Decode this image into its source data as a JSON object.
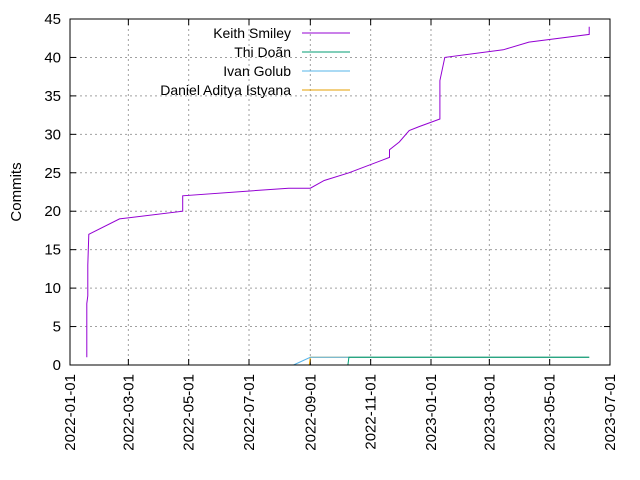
{
  "chart_data": {
    "type": "line",
    "title": "",
    "xlabel": "",
    "ylabel": "Commits",
    "x_axis_type": "date",
    "xlim": [
      "2022-01-01",
      "2023-07-01"
    ],
    "ylim": [
      0,
      45
    ],
    "grid": true,
    "legend_position": "top-left",
    "x_ticks": [
      "2022-01-01",
      "2022-03-01",
      "2022-05-01",
      "2022-07-01",
      "2022-09-01",
      "2022-11-01",
      "2023-01-01",
      "2023-03-01",
      "2023-05-01",
      "2023-07-01"
    ],
    "y_ticks": [
      "0",
      "5",
      "10",
      "15",
      "20",
      "25",
      "30",
      "35",
      "40",
      "45"
    ],
    "series": [
      {
        "name": "Keith Smiley",
        "color": "#9400d3",
        "points": [
          [
            "2022-01-18",
            1
          ],
          [
            "2022-01-18",
            8
          ],
          [
            "2022-01-19",
            9
          ],
          [
            "2022-01-19",
            13
          ],
          [
            "2022-01-20",
            17
          ],
          [
            "2022-02-20",
            19
          ],
          [
            "2022-04-25",
            20
          ],
          [
            "2022-04-25",
            22
          ],
          [
            "2022-08-10",
            23
          ],
          [
            "2022-09-01",
            23
          ],
          [
            "2022-09-15",
            24
          ],
          [
            "2022-10-10",
            25
          ],
          [
            "2022-11-20",
            27
          ],
          [
            "2022-11-20",
            28
          ],
          [
            "2022-11-30",
            29
          ],
          [
            "2022-12-10",
            30.5
          ],
          [
            "2022-12-20",
            31
          ],
          [
            "2023-01-10",
            32
          ],
          [
            "2023-01-10",
            37
          ],
          [
            "2023-01-15",
            40
          ],
          [
            "2023-03-15",
            41
          ],
          [
            "2023-04-10",
            42
          ],
          [
            "2023-06-10",
            43
          ],
          [
            "2023-06-10",
            44
          ]
        ]
      },
      {
        "name": "Thi Doãn",
        "color": "#009e73",
        "points": [
          [
            "2022-10-09",
            0
          ],
          [
            "2022-10-10",
            1
          ],
          [
            "2023-06-10",
            1
          ]
        ]
      },
      {
        "name": "Ivan Golub",
        "color": "#56b4e9",
        "points": [
          [
            "2022-08-15",
            0
          ],
          [
            "2022-09-01",
            1
          ],
          [
            "2023-06-10",
            1
          ]
        ]
      },
      {
        "name": "Daniel Aditya Istyana",
        "color": "#e69f00",
        "points": [
          [
            "2022-08-31",
            0
          ],
          [
            "2022-09-01",
            1
          ],
          [
            "2023-06-10",
            1
          ]
        ]
      }
    ]
  }
}
